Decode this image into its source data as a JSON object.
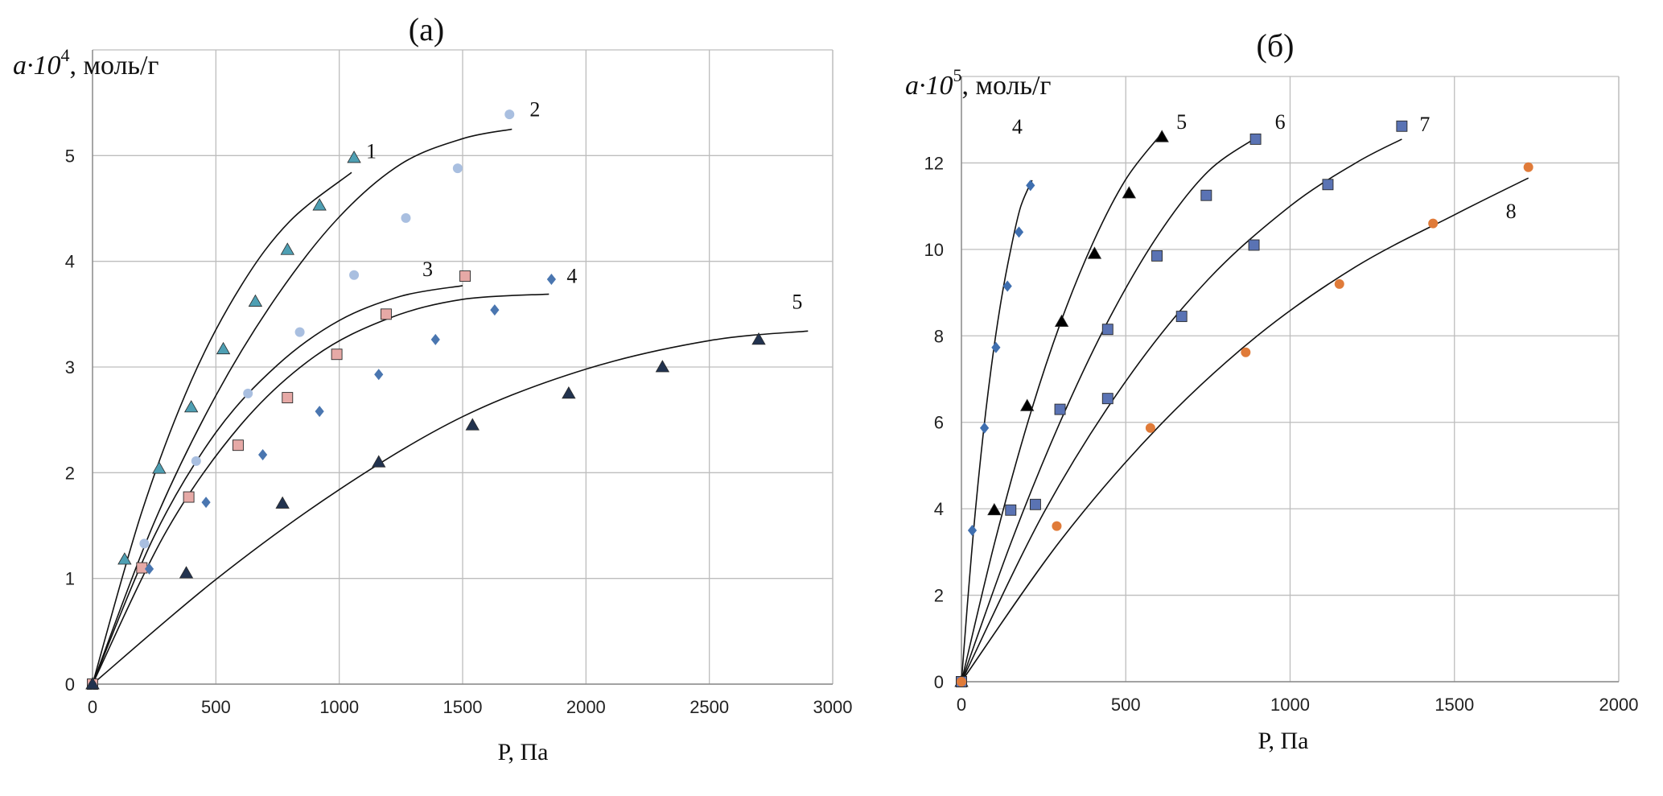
{
  "chart_data": [
    {
      "id": "a",
      "type": "scatter",
      "panel_label": "(а)",
      "ylabel_prefix": "a·10",
      "ylabel_exp": "4",
      "ylabel_unit": ", моль/г",
      "xlabel": "Р, Па",
      "xlim": [
        0,
        3000
      ],
      "ylim": [
        0,
        6
      ],
      "xticks": [
        0,
        500,
        1000,
        1500,
        2000,
        2500,
        3000
      ],
      "yticks": [
        0,
        1,
        2,
        3,
        4,
        5
      ],
      "grid": true,
      "series": [
        {
          "name": "1",
          "marker": "triangle",
          "color": "#4e9fb3",
          "points": [
            [
              0,
              0
            ],
            [
              130,
              1.18
            ],
            [
              270,
              2.04
            ],
            [
              400,
              2.62
            ],
            [
              530,
              3.17
            ],
            [
              660,
              3.62
            ],
            [
              790,
              4.11
            ],
            [
              920,
              4.53
            ],
            [
              1060,
              4.98
            ]
          ],
          "fit": [
            [
              0,
              0
            ],
            [
              200,
              1.63
            ],
            [
              400,
              2.87
            ],
            [
              600,
              3.76
            ],
            [
              800,
              4.38
            ],
            [
              1050,
              4.84
            ]
          ]
        },
        {
          "name": "2",
          "marker": "circle",
          "color": "#a9bfe0",
          "points": [
            [
              0,
              0
            ],
            [
              210,
              1.33
            ],
            [
              420,
              2.11
            ],
            [
              630,
              2.75
            ],
            [
              840,
              3.33
            ],
            [
              1060,
              3.87
            ],
            [
              1270,
              4.41
            ],
            [
              1480,
              4.88
            ],
            [
              1690,
              5.39
            ]
          ],
          "fit": [
            [
              0,
              0
            ],
            [
              250,
              1.53
            ],
            [
              500,
              2.73
            ],
            [
              750,
              3.68
            ],
            [
              1000,
              4.42
            ],
            [
              1250,
              4.92
            ],
            [
              1500,
              5.16
            ],
            [
              1700,
              5.25
            ]
          ]
        },
        {
          "name": "3",
          "marker": "square",
          "color": "#e6a9a6",
          "points": [
            [
              0,
              0
            ],
            [
              200,
              1.1
            ],
            [
              390,
              1.77
            ],
            [
              590,
              2.26
            ],
            [
              790,
              2.71
            ],
            [
              990,
              3.12
            ],
            [
              1190,
              3.5
            ],
            [
              1510,
              3.86
            ]
          ],
          "fit": [
            [
              0,
              0
            ],
            [
              250,
              1.4
            ],
            [
              500,
              2.38
            ],
            [
              750,
              3.02
            ],
            [
              1000,
              3.44
            ],
            [
              1250,
              3.67
            ],
            [
              1500,
              3.77
            ]
          ]
        },
        {
          "name": "4",
          "marker": "diamond",
          "color": "#4a76b0",
          "points": [
            [
              0,
              0
            ],
            [
              230,
              1.09
            ],
            [
              460,
              1.72
            ],
            [
              690,
              2.17
            ],
            [
              920,
              2.58
            ],
            [
              1160,
              2.93
            ],
            [
              1390,
              3.26
            ],
            [
              1630,
              3.54
            ],
            [
              1860,
              3.83
            ]
          ],
          "fit": [
            [
              0,
              0
            ],
            [
              300,
              1.45
            ],
            [
              600,
              2.45
            ],
            [
              900,
              3.1
            ],
            [
              1200,
              3.46
            ],
            [
              1500,
              3.64
            ],
            [
              1850,
              3.69
            ]
          ]
        },
        {
          "name": "5",
          "marker": "triangle",
          "color": "#22334f",
          "points": [
            [
              0,
              0
            ],
            [
              380,
              1.05
            ],
            [
              770,
              1.71
            ],
            [
              1160,
              2.1
            ],
            [
              1540,
              2.45
            ],
            [
              1930,
              2.75
            ],
            [
              2310,
              3.0
            ],
            [
              2700,
              3.26
            ]
          ],
          "fit": [
            [
              0,
              0
            ],
            [
              500,
              0.99
            ],
            [
              1000,
              1.84
            ],
            [
              1500,
              2.53
            ],
            [
              2000,
              2.98
            ],
            [
              2500,
              3.25
            ],
            [
              2900,
              3.34
            ]
          ]
        }
      ]
    },
    {
      "id": "b",
      "type": "scatter",
      "panel_label": "(б)",
      "ylabel_prefix": "a·10",
      "ylabel_exp": "5",
      "ylabel_unit": ", моль/г",
      "xlabel": "Р, Па",
      "xlim": [
        0,
        2000
      ],
      "ylim": [
        0,
        14
      ],
      "xticks": [
        0,
        500,
        1000,
        1500,
        2000
      ],
      "yticks": [
        0,
        2,
        4,
        6,
        8,
        10,
        12
      ],
      "grid": true,
      "series": [
        {
          "name": "4",
          "marker": "diamond",
          "color": "#3f6fb0",
          "points": [
            [
              0,
              0
            ],
            [
              33,
              3.5
            ],
            [
              70,
              5.87
            ],
            [
              105,
              7.73
            ],
            [
              140,
              9.15
            ],
            [
              175,
              10.4
            ],
            [
              210,
              11.48
            ]
          ],
          "fit": [
            [
              0,
              0
            ],
            [
              30,
              2.9
            ],
            [
              60,
              5.29
            ],
            [
              90,
              7.23
            ],
            [
              120,
              8.78
            ],
            [
              150,
              10.0
            ],
            [
              180,
              10.98
            ],
            [
              215,
              11.6
            ]
          ]
        },
        {
          "name": "5",
          "marker": "triangle",
          "color": "#000000",
          "points": [
            [
              0,
              0
            ],
            [
              100,
              3.97
            ],
            [
              200,
              6.38
            ],
            [
              305,
              8.33
            ],
            [
              405,
              9.9
            ],
            [
              510,
              11.3
            ],
            [
              610,
              12.6
            ]
          ],
          "fit": [
            [
              0,
              0
            ],
            [
              100,
              3.18
            ],
            [
              200,
              5.95
            ],
            [
              300,
              8.27
            ],
            [
              400,
              10.15
            ],
            [
              500,
              11.62
            ],
            [
              600,
              12.6
            ]
          ]
        },
        {
          "name": "6",
          "marker": "square",
          "color": "#5a73b4",
          "points": [
            [
              0,
              0
            ],
            [
              150,
              3.97
            ],
            [
              300,
              6.3
            ],
            [
              445,
              8.15
            ],
            [
              595,
              9.85
            ],
            [
              745,
              11.25
            ],
            [
              895,
              12.55
            ]
          ],
          "fit": [
            [
              0,
              0
            ],
            [
              150,
              3.2
            ],
            [
              300,
              6.0
            ],
            [
              450,
              8.4
            ],
            [
              600,
              10.35
            ],
            [
              750,
              11.8
            ],
            [
              900,
              12.6
            ]
          ]
        },
        {
          "name": "7",
          "marker": "square",
          "color": "#5a73b4",
          "points": [
            [
              0,
              0
            ],
            [
              225,
              4.1
            ],
            [
              445,
              6.55
            ],
            [
              670,
              8.45
            ],
            [
              890,
              10.1
            ],
            [
              1115,
              11.5
            ],
            [
              1340,
              12.85
            ]
          ],
          "fit": [
            [
              0,
              0
            ],
            [
              250,
              3.9
            ],
            [
              500,
              6.95
            ],
            [
              750,
              9.3
            ],
            [
              1000,
              11.0
            ],
            [
              1200,
              12.0
            ],
            [
              1340,
              12.55
            ]
          ]
        },
        {
          "name": "8",
          "marker": "circle",
          "color": "#e07b39",
          "points": [
            [
              0,
              0
            ],
            [
              290,
              3.6
            ],
            [
              575,
              5.87
            ],
            [
              865,
              7.62
            ],
            [
              1150,
              9.2
            ],
            [
              1435,
              10.6
            ],
            [
              1725,
              11.9
            ]
          ],
          "fit": [
            [
              0,
              0
            ],
            [
              300,
              3.25
            ],
            [
              600,
              5.9
            ],
            [
              900,
              8.0
            ],
            [
              1200,
              9.6
            ],
            [
              1500,
              10.8
            ],
            [
              1725,
              11.65
            ]
          ]
        }
      ]
    }
  ]
}
